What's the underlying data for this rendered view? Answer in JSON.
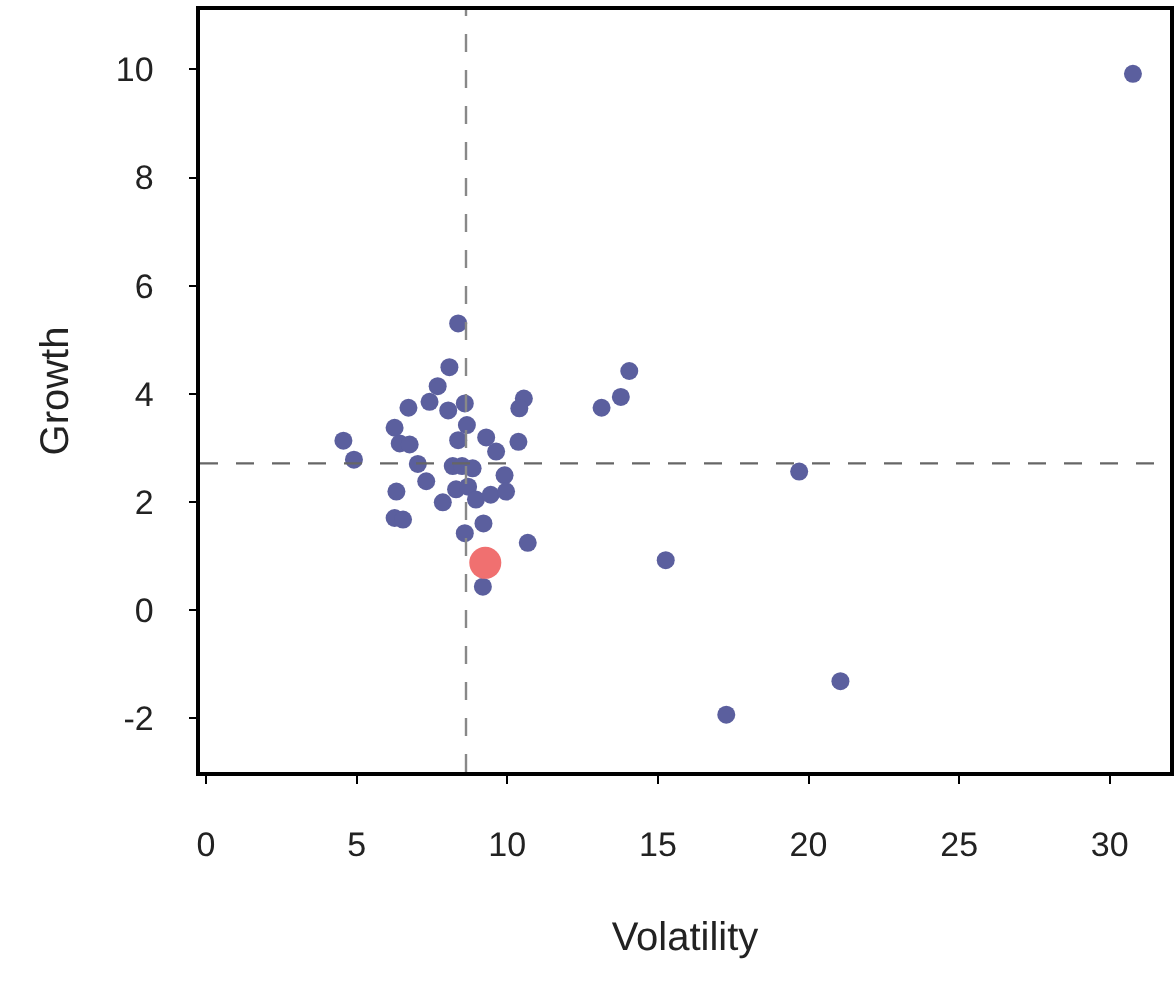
{
  "chart_data": {
    "type": "scatter",
    "xlabel": "Volatility",
    "ylabel": "Growth",
    "xlim": [
      -0.2,
      32
    ],
    "ylim": [
      -3,
      11.1
    ],
    "xticks": [
      0,
      5,
      10,
      15,
      20,
      25,
      30
    ],
    "yticks": [
      -2,
      0,
      2,
      4,
      6,
      8,
      10
    ],
    "grid": false,
    "marker": "circle",
    "series": [
      {
        "color": "#5b5f9e",
        "x": [
          30.77,
          8.37,
          8.08,
          14.05,
          7.69,
          7.42,
          6.72,
          8.04,
          8.59,
          10.55,
          10.4,
          13.77,
          13.13,
          6.26,
          8.66,
          4.56,
          6.43,
          6.76,
          8.37,
          9.3,
          10.37,
          9.63,
          4.91,
          7.03,
          8.19,
          8.5,
          8.85,
          9.91,
          7.31,
          19.69,
          6.32,
          8.3,
          8.7,
          8.96,
          9.45,
          9.96,
          7.86,
          6.26,
          6.54,
          9.21,
          8.59,
          10.68,
          15.26,
          9.19,
          21.06,
          17.27
        ],
        "values": [
          9.92,
          5.3,
          4.49,
          4.42,
          4.14,
          3.85,
          3.74,
          3.69,
          3.82,
          3.91,
          3.73,
          3.94,
          3.74,
          3.37,
          3.42,
          3.13,
          3.08,
          3.06,
          3.14,
          3.19,
          3.11,
          2.93,
          2.78,
          2.7,
          2.66,
          2.66,
          2.62,
          2.49,
          2.38,
          2.56,
          2.19,
          2.23,
          2.28,
          2.04,
          2.13,
          2.19,
          1.99,
          1.7,
          1.67,
          1.6,
          1.42,
          1.24,
          0.92,
          0.43,
          -1.32,
          -1.94
        ]
      },
      {
        "color": "#f07070",
        "x": [
          9.27
        ],
        "values": [
          0.87
        ]
      }
    ],
    "ref_lines": [
      {
        "axis": "x",
        "value": 8.63,
        "color": "#888888",
        "line_style": "dashed"
      },
      {
        "axis": "y",
        "value": 2.71,
        "color": "#666666",
        "line_style": "dashed"
      }
    ]
  }
}
